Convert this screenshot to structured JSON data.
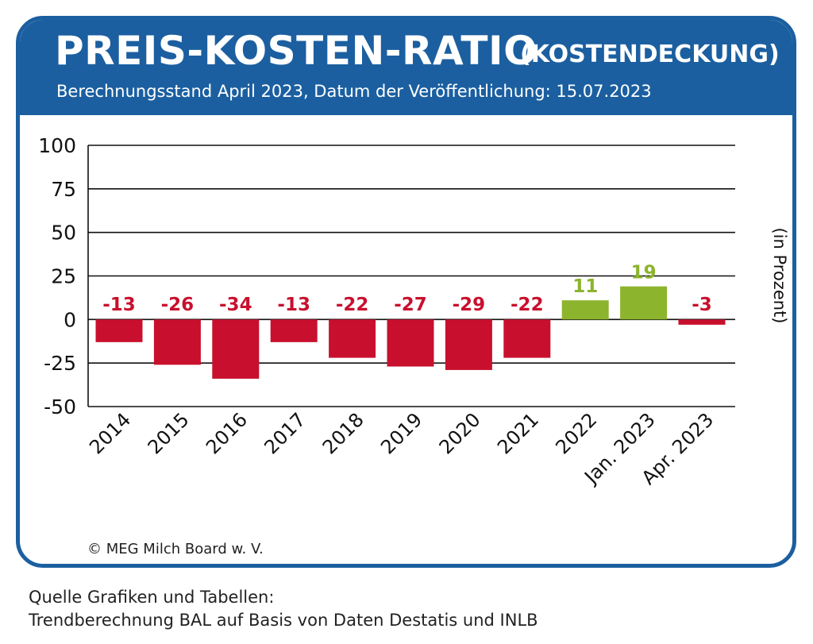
{
  "header": {
    "title": "PREIS-KOSTEN-RATIO",
    "title_suffix": "(KOSTENDECKUNG)",
    "subtitle": "Berechnungsstand April 2023, Datum der Veröffentlichung: 15.07.2023"
  },
  "copyright": "© MEG Milch Board w. V.",
  "source": {
    "line1": "Quelle Grafiken und Tabellen:",
    "line2": "Trendberechnung BAL auf Basis von Daten Destatis und INLB"
  },
  "colors": {
    "brand": "#1b5fa0",
    "negative": "#c8102e",
    "positive": "#8cb42d"
  },
  "chart_data": {
    "type": "bar",
    "categories": [
      "2014",
      "2015",
      "2016",
      "2017",
      "2018",
      "2019",
      "2020",
      "2021",
      "2022",
      "Jan. 2023",
      "Apr. 2023"
    ],
    "values": [
      -13,
      -26,
      -34,
      -13,
      -22,
      -27,
      -29,
      -22,
      11,
      19,
      -3
    ],
    "value_labels": [
      "-13",
      "-26",
      "-34",
      "-13",
      "-22",
      "-27",
      "-29",
      "-22",
      "11",
      "19",
      "-3"
    ],
    "ylabel": "(in Prozent)",
    "ylim": [
      -50,
      100
    ],
    "yticks": [
      100,
      75,
      50,
      25,
      0,
      -25,
      -50
    ],
    "ytick_labels": [
      "100",
      "75",
      "50",
      "25",
      "0",
      "-25",
      "-50"
    ],
    "grid": true
  }
}
